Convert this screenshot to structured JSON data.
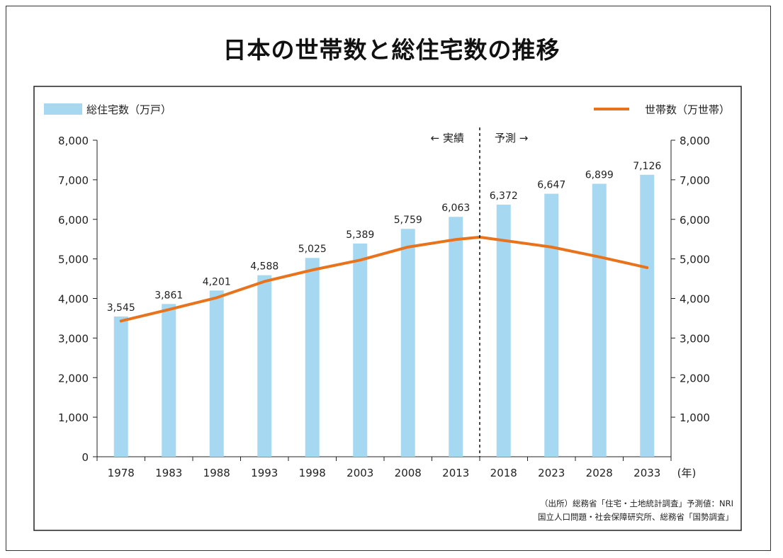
{
  "title": "日本の世帯数と総住宅数の推移",
  "source_line1": "（出所）総務省「住宅・土地統計調査」予測値：NRI",
  "source_line2": "国立人口問題・社会保障研究所、総務省「国勢調査」",
  "chart_data": {
    "type": "bar",
    "categories": [
      "1978",
      "1983",
      "1988",
      "1993",
      "1998",
      "2003",
      "2008",
      "2013",
      "2018",
      "2023",
      "2028",
      "2033"
    ],
    "x_unit": "(年)",
    "series": [
      {
        "name": "総住宅数（万戸）",
        "kind": "bar",
        "color": "#a6d8f2",
        "values": [
          3545,
          3861,
          4201,
          4588,
          5025,
          5389,
          5759,
          6063,
          6372,
          6647,
          6899,
          7126
        ],
        "value_labels": [
          "3,545",
          "3,861",
          "4,201",
          "4,588",
          "5,025",
          "5,389",
          "5,759",
          "6,063",
          "6,372",
          "6,647",
          "6,899",
          "7,126"
        ]
      },
      {
        "name": "世帯数（万世帯）",
        "kind": "line",
        "color": "#e8731c",
        "values": [
          3430,
          3720,
          4020,
          4430,
          4720,
          4970,
          5300,
          5490,
          5550,
          5300,
          5050,
          4780
        ]
      }
    ],
    "ylim": [
      0,
      8000
    ],
    "y_ticks": [
      0,
      1000,
      2000,
      3000,
      4000,
      5000,
      6000,
      7000,
      8000
    ],
    "y_tick_labels": [
      "0",
      "1,000",
      "2,000",
      "3,000",
      "4,000",
      "5,000",
      "6,000",
      "7,000",
      "8,000"
    ],
    "y2_tick_labels": [
      "1,000",
      "2,000",
      "3,000",
      "4,000",
      "5,000",
      "6,000",
      "7,000",
      "8,000"
    ],
    "actual_label": "← 実績",
    "forecast_label": "予測 →",
    "grid": false,
    "legend": "top"
  }
}
